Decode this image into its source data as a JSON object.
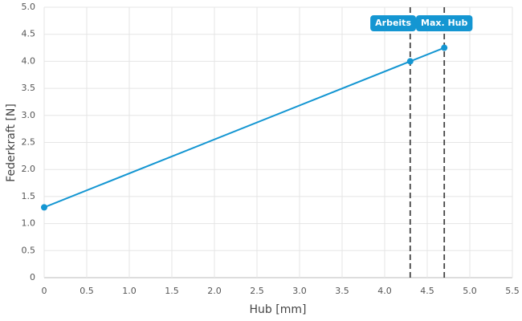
{
  "chart_data": {
    "type": "line",
    "x_label": "Hub [mm]",
    "y_label": "Federkraft [N]",
    "x": [
      0,
      4.3,
      4.7
    ],
    "series": [
      {
        "color": "#1496d2",
        "values": [
          1.3,
          4.0,
          4.25
        ]
      }
    ],
    "annotations": [
      {
        "x": 4.3,
        "label": "Arbeits"
      },
      {
        "x": 4.7,
        "label": "Max. Hub"
      }
    ],
    "annotation_color": "#1496d2",
    "xlim": [
      0,
      5.5
    ],
    "xticks": [
      0,
      0.5,
      {
        "value": 1,
        "label": "1.0"
      },
      1.5,
      {
        "value": 2,
        "label": "2.0"
      },
      2.5,
      {
        "value": 3,
        "label": "3.0"
      },
      3.5,
      {
        "value": 4,
        "label": "4.0"
      },
      4.5,
      {
        "value": 5,
        "label": "5.0"
      },
      5.5
    ],
    "ylim": [
      0,
      5
    ],
    "yticks": [
      0,
      0.5,
      {
        "value": 1,
        "label": "1.0"
      },
      1.5,
      {
        "value": 2,
        "label": "2.0"
      },
      2.5,
      {
        "value": 3,
        "label": "3.0"
      },
      3.5,
      {
        "value": 4,
        "label": "4.0"
      },
      4.5,
      {
        "value": 5,
        "label": "5.0"
      }
    ],
    "grid": true
  }
}
